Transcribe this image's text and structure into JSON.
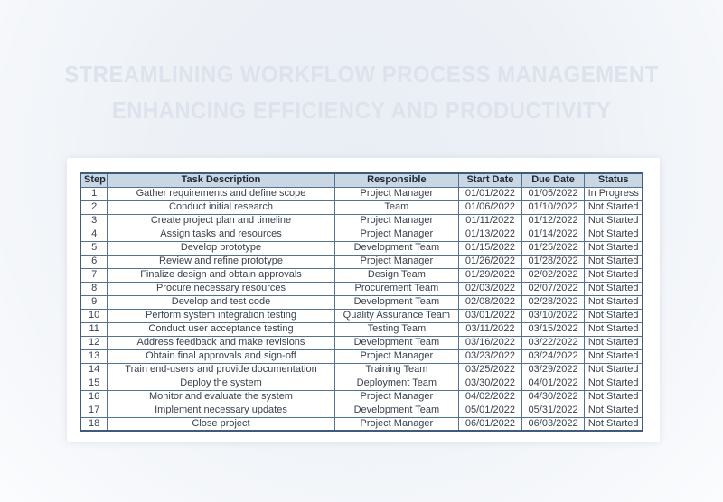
{
  "title": {
    "line1": "STREAMLINING WORKFLOW PROCESS MANAGEMENT",
    "line2": "ENHANCING EFFICIENCY AND PRODUCTIVITY"
  },
  "table": {
    "columns": [
      "Step",
      "Task Description",
      "Responsible",
      "Start Date",
      "Due Date",
      "Status"
    ],
    "rows": [
      [
        "1",
        "Gather requirements and define scope",
        "Project Manager",
        "01/01/2022",
        "01/05/2022",
        "In Progress"
      ],
      [
        "2",
        "Conduct initial research",
        "Team",
        "01/06/2022",
        "01/10/2022",
        "Not Started"
      ],
      [
        "3",
        "Create project plan and timeline",
        "Project Manager",
        "01/11/2022",
        "01/12/2022",
        "Not Started"
      ],
      [
        "4",
        "Assign tasks and resources",
        "Project Manager",
        "01/13/2022",
        "01/14/2022",
        "Not Started"
      ],
      [
        "5",
        "Develop prototype",
        "Development Team",
        "01/15/2022",
        "01/25/2022",
        "Not Started"
      ],
      [
        "6",
        "Review and refine prototype",
        "Project Manager",
        "01/26/2022",
        "01/28/2022",
        "Not Started"
      ],
      [
        "7",
        "Finalize design and obtain approvals",
        "Design Team",
        "01/29/2022",
        "02/02/2022",
        "Not Started"
      ],
      [
        "8",
        "Procure necessary resources",
        "Procurement Team",
        "02/03/2022",
        "02/07/2022",
        "Not Started"
      ],
      [
        "9",
        "Develop and test code",
        "Development Team",
        "02/08/2022",
        "02/28/2022",
        "Not Started"
      ],
      [
        "10",
        "Perform system integration testing",
        "Quality Assurance Team",
        "03/01/2022",
        "03/10/2022",
        "Not Started"
      ],
      [
        "11",
        "Conduct user acceptance testing",
        "Testing Team",
        "03/11/2022",
        "03/15/2022",
        "Not Started"
      ],
      [
        "12",
        "Address feedback and make revisions",
        "Development Team",
        "03/16/2022",
        "03/22/2022",
        "Not Started"
      ],
      [
        "13",
        "Obtain final approvals and sign-off",
        "Project Manager",
        "03/23/2022",
        "03/24/2022",
        "Not Started"
      ],
      [
        "14",
        "Train end-users and provide documentation",
        "Training Team",
        "03/25/2022",
        "03/29/2022",
        "Not Started"
      ],
      [
        "15",
        "Deploy the system",
        "Deployment Team",
        "03/30/2022",
        "04/01/2022",
        "Not Started"
      ],
      [
        "16",
        "Monitor and evaluate the system",
        "Project Manager",
        "04/02/2022",
        "04/30/2022",
        "Not Started"
      ],
      [
        "17",
        "Implement necessary updates",
        "Development Team",
        "05/01/2022",
        "05/31/2022",
        "Not Started"
      ],
      [
        "18",
        "Close project",
        "Project Manager",
        "06/01/2022",
        "06/03/2022",
        "Not Started"
      ]
    ]
  },
  "colors": {
    "header_background": "#c9d6e4",
    "header_text": "#1d2835",
    "table_border": "#54718d",
    "table_outer_border": "#3f5d7a",
    "cell_text": "#39414d",
    "watermark_title": "#dde3ed",
    "card_background": "#ffffff",
    "page_background": "#edf1f6"
  }
}
